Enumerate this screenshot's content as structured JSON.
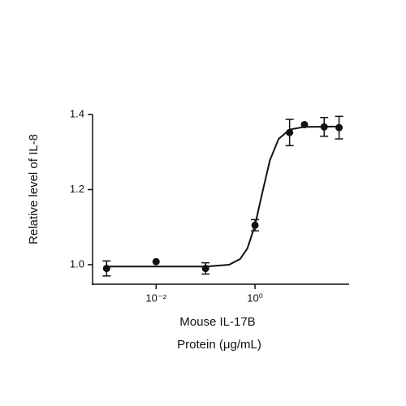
{
  "chart_data": {
    "type": "scatter",
    "x_label": [
      "Mouse IL-17B",
      "Protein (μg/mL)"
    ],
    "y_label": "Relative level of IL-8",
    "xscale": "log",
    "xlim": [
      0.00052,
      80
    ],
    "ylim": [
      0.948,
      1.4
    ],
    "xticks": [
      {
        "value": 0.01,
        "label": "10⁻²"
      },
      {
        "value": 1,
        "label": "10⁰"
      }
    ],
    "yticks": [
      {
        "value": 1,
        "label": "1.0"
      },
      1.2,
      1.4
    ],
    "color": "#111111",
    "points": {
      "x": [
        0.001,
        0.01,
        0.1,
        1,
        5,
        10,
        25,
        50
      ],
      "values": [
        0.99,
        1.008,
        0.99,
        1.105,
        1.352,
        1.373,
        1.367,
        1.365
      ],
      "errors": [
        0.02,
        null,
        0.015,
        0.015,
        0.035,
        null,
        0.025,
        0.03
      ]
    },
    "curve": {
      "x": [
        0.001,
        0.1,
        0.3,
        0.5,
        0.7,
        1,
        1.35,
        2,
        3,
        5,
        10,
        55
      ],
      "values": [
        0.995,
        0.995,
        1.0,
        1.015,
        1.043,
        1.105,
        1.182,
        1.278,
        1.335,
        1.36,
        1.367,
        1.368
      ]
    }
  }
}
